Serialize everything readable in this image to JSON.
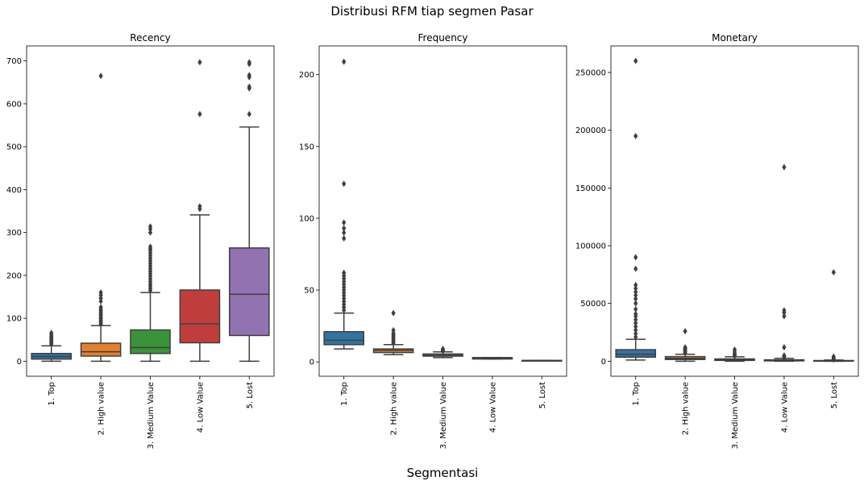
{
  "figure": {
    "suptitle": "Distribusi RFM tiap segmen Pasar",
    "supxlabel": "Segmentasi"
  },
  "palette": [
    "#3274a1",
    "#e1812c",
    "#3a923a",
    "#c03d3e",
    "#9372b2"
  ],
  "chart_data": [
    {
      "type": "box",
      "title": "Recency",
      "categories": [
        "1. Top",
        "2. High value",
        "3. Medium Value",
        "4. Low Value",
        "5. Lost"
      ],
      "ylim": [
        -35,
        735
      ],
      "yticks": [
        0,
        100,
        200,
        300,
        400,
        500,
        600,
        700
      ],
      "grid": false,
      "boxes": [
        {
          "whislo": 0,
          "q1": 5,
          "med": 11,
          "q3": 18,
          "whishi": 36,
          "fliers": [
            40,
            42,
            45,
            48,
            50,
            53,
            55,
            58,
            62,
            66
          ]
        },
        {
          "whislo": 0,
          "q1": 12,
          "med": 22,
          "q3": 42,
          "whishi": 83,
          "fliers": [
            86,
            90,
            93,
            96,
            100,
            103,
            107,
            110,
            114,
            118,
            122,
            126,
            140,
            147,
            154,
            160,
            665
          ]
        },
        {
          "whislo": 0,
          "q1": 18,
          "med": 32,
          "q3": 73,
          "whishi": 160,
          "fliers": [
            165,
            170,
            175,
            180,
            186,
            192,
            198,
            204,
            210,
            216,
            222,
            228,
            234,
            240,
            246,
            252,
            258,
            262,
            267,
            300,
            308,
            314
          ]
        },
        {
          "whislo": 0,
          "q1": 43,
          "med": 87,
          "q3": 166,
          "whishi": 341,
          "fliers": [
            355,
            361,
            576,
            697
          ]
        },
        {
          "whislo": 0,
          "q1": 60,
          "med": 156,
          "q3": 264,
          "whishi": 546,
          "fliers": [
            576,
            636,
            640,
            662,
            667,
            693,
            697
          ]
        }
      ]
    },
    {
      "type": "box",
      "title": "Frequency",
      "categories": [
        "1. Top",
        "2. High value",
        "3. Medium Value",
        "4. Low Value",
        "5. Lost"
      ],
      "ylim": [
        -10,
        220
      ],
      "yticks": [
        0,
        50,
        100,
        150,
        200
      ],
      "grid": false,
      "boxes": [
        {
          "whislo": 9,
          "q1": 12,
          "med": 15,
          "q3": 21,
          "whishi": 34,
          "fliers": [
            36,
            38,
            40,
            42,
            44,
            46,
            48,
            50,
            52,
            54,
            56,
            58,
            60,
            62,
            86,
            90,
            93,
            97,
            124,
            209
          ]
        },
        {
          "whislo": 5,
          "q1": 6.5,
          "med": 8,
          "q3": 9,
          "whishi": 12,
          "fliers": [
            13,
            14,
            15,
            16,
            17,
            18,
            19,
            20,
            22,
            34
          ]
        },
        {
          "whislo": 3,
          "q1": 4,
          "med": 4.5,
          "q3": 5.5,
          "whishi": 7,
          "fliers": [
            7.5,
            8,
            8.5,
            9
          ]
        },
        {
          "whislo": 2,
          "q1": 2,
          "med": 2.5,
          "q3": 3,
          "whishi": 3,
          "fliers": []
        },
        {
          "whislo": 1,
          "q1": 1,
          "med": 1,
          "q3": 1,
          "whishi": 1,
          "fliers": []
        }
      ]
    },
    {
      "type": "box",
      "title": "Monetary",
      "categories": [
        "1. Top",
        "2. High value",
        "3. Medium Value",
        "4. Low Value",
        "5. Lost"
      ],
      "ylim": [
        -13000,
        273000
      ],
      "yticks": [
        0,
        50000,
        100000,
        150000,
        200000,
        250000
      ],
      "grid": false,
      "boxes": [
        {
          "whislo": 1000,
          "q1": 3500,
          "med": 6000,
          "q3": 10000,
          "whishi": 19000,
          "fliers": [
            21000,
            24000,
            27000,
            30000,
            33000,
            36000,
            39000,
            41000,
            45000,
            50000,
            54000,
            57000,
            60000,
            63000,
            66000,
            80000,
            90000,
            195000,
            260000
          ]
        },
        {
          "whislo": 0,
          "q1": 1500,
          "med": 2500,
          "q3": 4000,
          "whishi": 6000,
          "fliers": [
            7000,
            8000,
            9000,
            10000,
            11000,
            12000,
            26000
          ]
        },
        {
          "whislo": 0,
          "q1": 700,
          "med": 1300,
          "q3": 2000,
          "whishi": 3800,
          "fliers": [
            4500,
            5500,
            6500,
            8000,
            10000
          ]
        },
        {
          "whislo": 0,
          "q1": 300,
          "med": 700,
          "q3": 1200,
          "whishi": 2500,
          "fliers": [
            3000,
            4000,
            5000,
            12000,
            39000,
            42000,
            44000,
            168000
          ]
        },
        {
          "whislo": 0,
          "q1": 100,
          "med": 300,
          "q3": 600,
          "whishi": 1000,
          "fliers": [
            1500,
            2000,
            3000,
            4000,
            77000
          ]
        }
      ]
    }
  ]
}
